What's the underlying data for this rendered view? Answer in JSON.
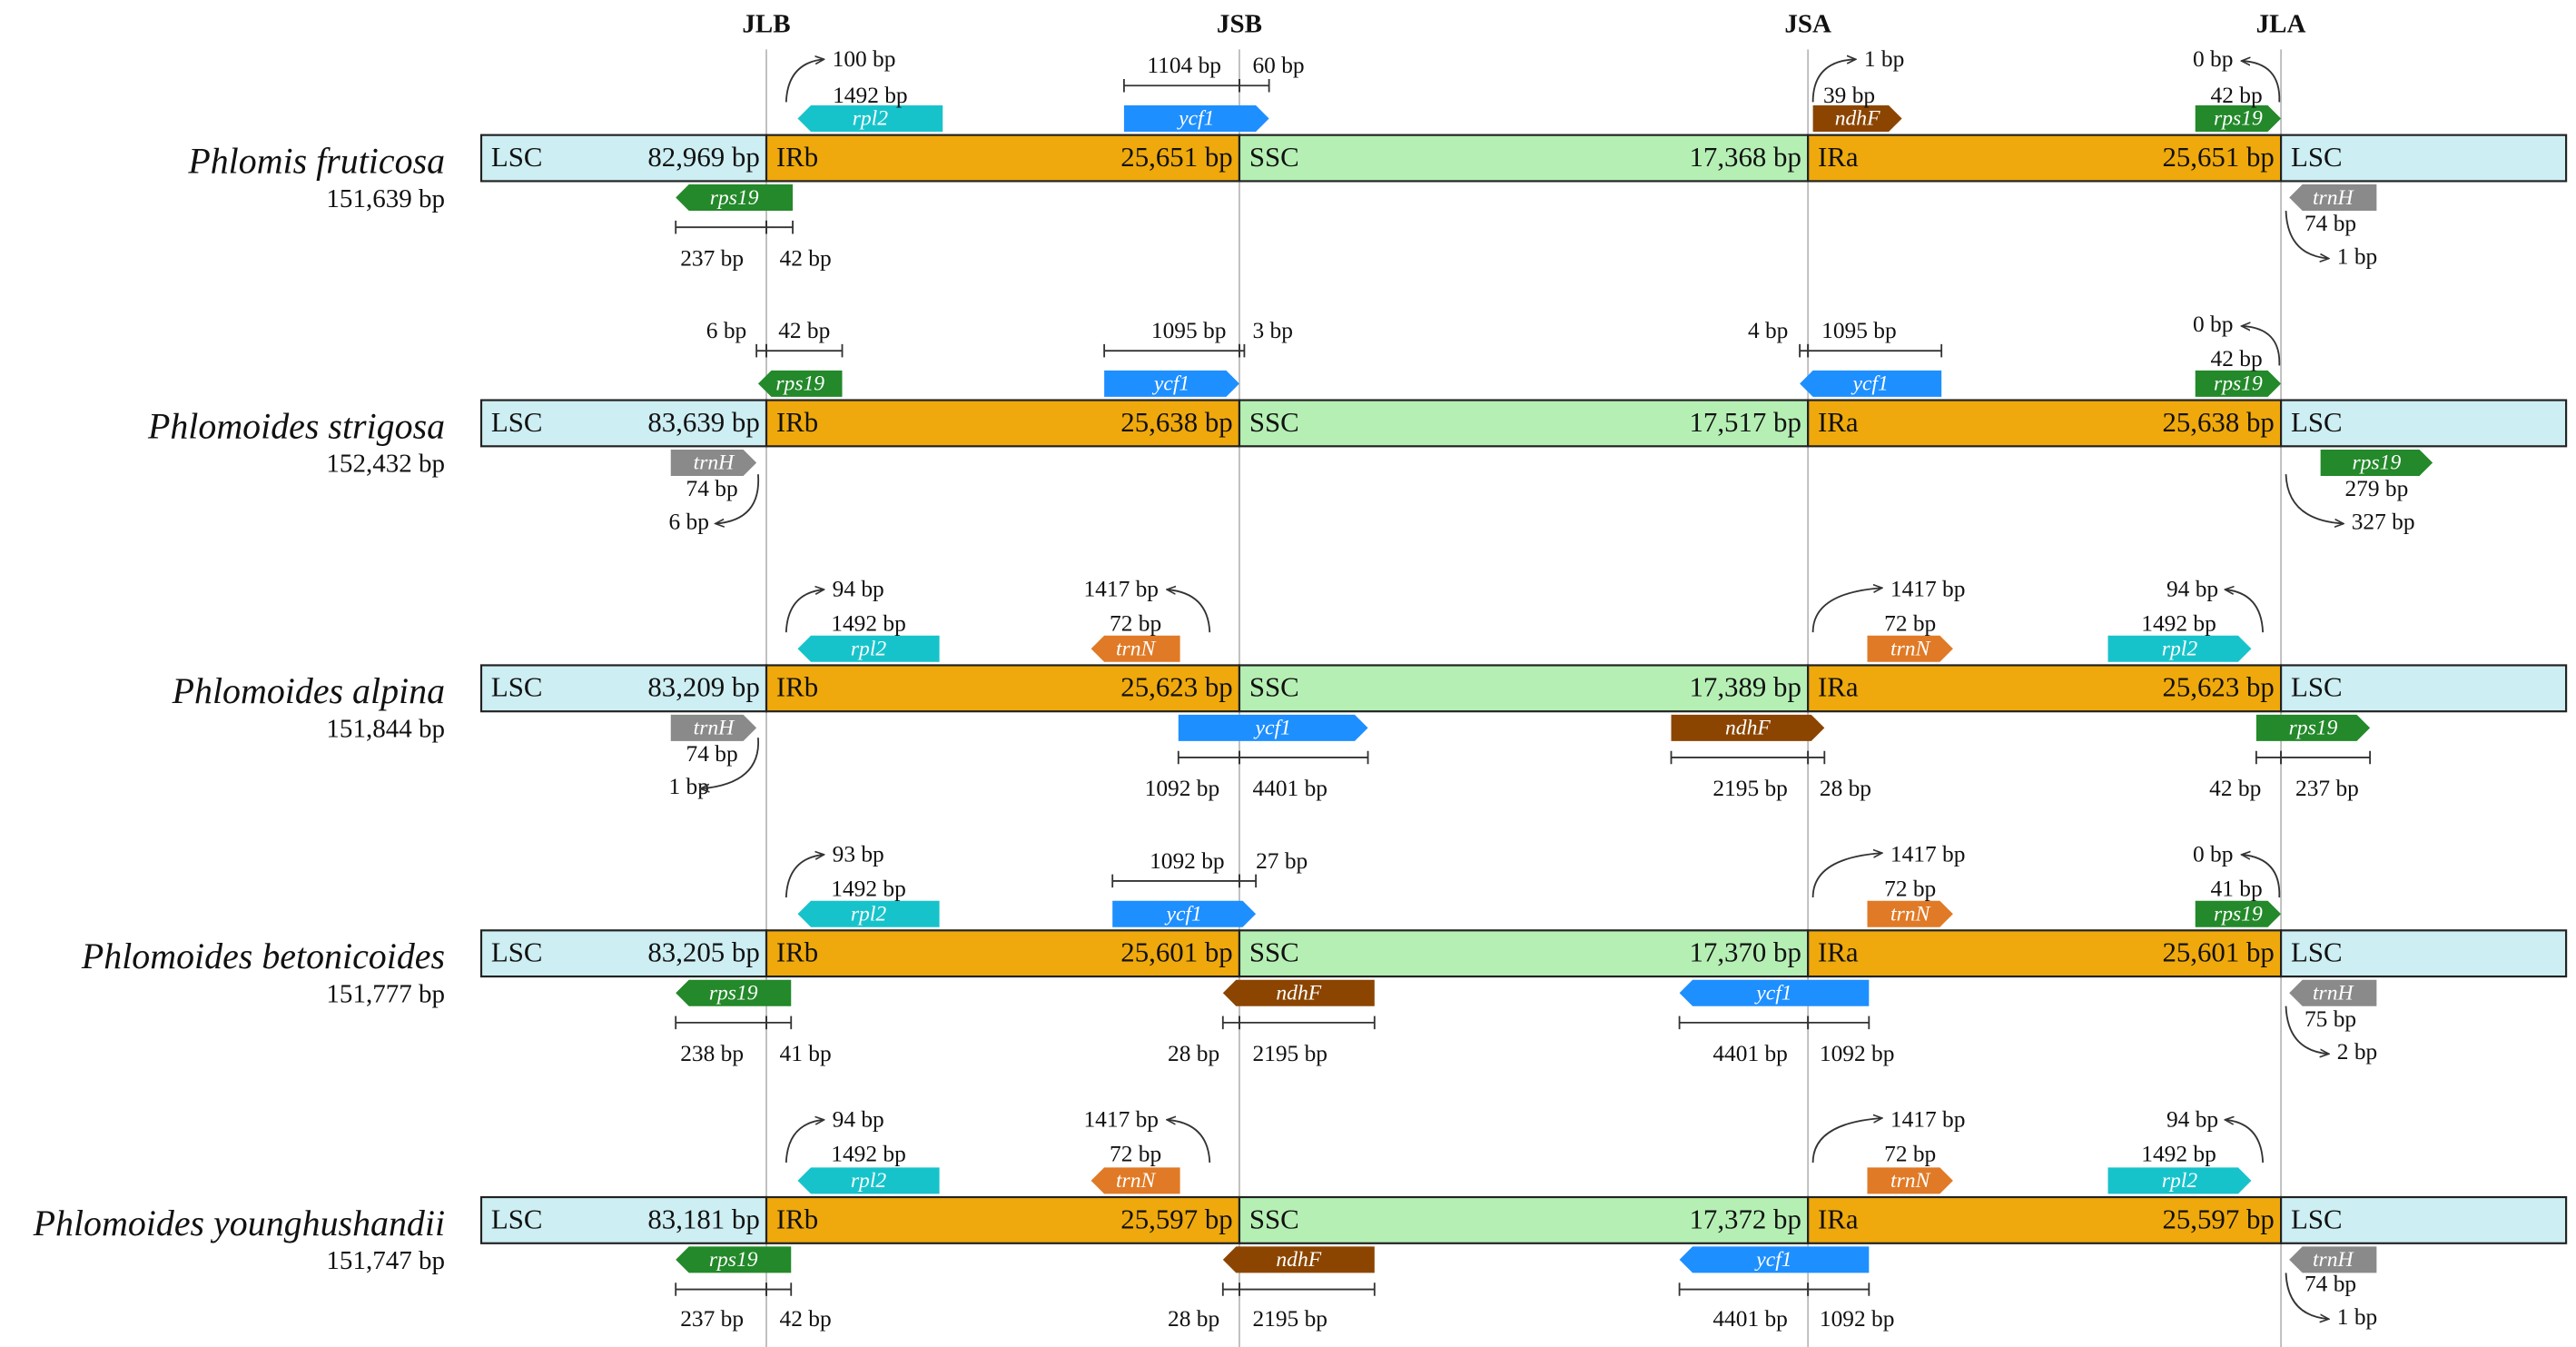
{
  "junctions": [
    "JLB",
    "JSB",
    "JSA",
    "JLA"
  ],
  "genomes": [
    {
      "name": "Phlomis fruticosa",
      "length": "151,639 bp",
      "regions": [
        {
          "label": "LSC",
          "length": "82,969 bp"
        },
        {
          "label": "IRb",
          "length": "25,651 bp"
        },
        {
          "label": "SSC",
          "length": "17,368 bp"
        },
        {
          "label": "IRa",
          "length": "25,651 bp"
        },
        {
          "label": "LSC"
        }
      ],
      "genes": [
        "rpl2",
        "ycf1",
        "ndhF",
        "rps19",
        "rps19",
        "trnH"
      ],
      "labels": [
        "100 bp",
        "1492 bp",
        "1104 bp",
        "60 bp",
        "1 bp",
        "39 bp",
        "0 bp",
        "42 bp",
        "237 bp",
        "42 bp",
        "74 bp",
        "1 bp"
      ]
    },
    {
      "name": "Phlomoides strigosa",
      "length": "152,432 bp",
      "regions": [
        {
          "label": "LSC",
          "length": "83,639 bp"
        },
        {
          "label": "IRb",
          "length": "25,638 bp"
        },
        {
          "label": "SSC",
          "length": "17,517 bp"
        },
        {
          "label": "IRa",
          "length": "25,638 bp"
        },
        {
          "label": "LSC"
        }
      ],
      "genes": [
        "rps19",
        "ycf1",
        "ycf1",
        "rps19",
        "trnH",
        "rps19"
      ],
      "labels": [
        "6 bp",
        "42 bp",
        "1095 bp",
        "3 bp",
        "4 bp",
        "1095 bp",
        "0 bp",
        "42 bp",
        "74 bp",
        "6 bp",
        "279 bp",
        "327 bp"
      ]
    },
    {
      "name": "Phlomoides alpina",
      "length": "151,844 bp",
      "regions": [
        {
          "label": "LSC",
          "length": "83,209 bp"
        },
        {
          "label": "IRb",
          "length": "25,623 bp"
        },
        {
          "label": "SSC",
          "length": "17,389 bp"
        },
        {
          "label": "IRa",
          "length": "25,623 bp"
        },
        {
          "label": "LSC"
        }
      ],
      "genes": [
        "rpl2",
        "trnN",
        "trnN",
        "rpl2",
        "trnH",
        "ycf1",
        "ndhF",
        "rps19"
      ],
      "labels": [
        "94 bp",
        "1492 bp",
        "1417 bp",
        "72 bp",
        "1417 bp",
        "72 bp",
        "94 bp",
        "1492 bp",
        "74 bp",
        "1 bp",
        "1092 bp",
        "4401 bp",
        "2195 bp",
        "28 bp",
        "42 bp",
        "237 bp"
      ]
    },
    {
      "name": "Phlomoides betonicoides",
      "length": "151,777 bp",
      "regions": [
        {
          "label": "LSC",
          "length": "83,205 bp"
        },
        {
          "label": "IRb",
          "length": "25,601 bp"
        },
        {
          "label": "SSC",
          "length": "17,370 bp"
        },
        {
          "label": "IRa",
          "length": "25,601 bp"
        },
        {
          "label": "LSC"
        }
      ],
      "genes": [
        "rpl2",
        "ycf1",
        "trnN",
        "rps19",
        "rps19",
        "ndhF",
        "ycf1",
        "trnH"
      ],
      "labels": [
        "93 bp",
        "1492 bp",
        "1092 bp",
        "27 bp",
        "1417 bp",
        "72 bp",
        "0 bp",
        "41 bp",
        "238 bp",
        "41 bp",
        "28 bp",
        "2195 bp",
        "4401 bp",
        "1092 bp",
        "75 bp",
        "2 bp"
      ]
    },
    {
      "name": "Phlomoides younghushandii",
      "length": "151,747 bp",
      "regions": [
        {
          "label": "LSC",
          "length": "83,181 bp"
        },
        {
          "label": "IRb",
          "length": "25,597 bp"
        },
        {
          "label": "SSC",
          "length": "17,372 bp"
        },
        {
          "label": "IRa",
          "length": "25,597 bp"
        },
        {
          "label": "LSC"
        }
      ],
      "genes": [
        "rpl2",
        "trnN",
        "trnN",
        "rpl2",
        "rps19",
        "ndhF",
        "ycf1",
        "trnH"
      ],
      "labels": [
        "94 bp",
        "1492 bp",
        "1417 bp",
        "72 bp",
        "1417 bp",
        "72 bp",
        "94 bp",
        "1492 bp",
        "237 bp",
        "42 bp",
        "28 bp",
        "2195 bp",
        "4401 bp",
        "1092 bp",
        "74 bp",
        "1 bp"
      ]
    }
  ]
}
